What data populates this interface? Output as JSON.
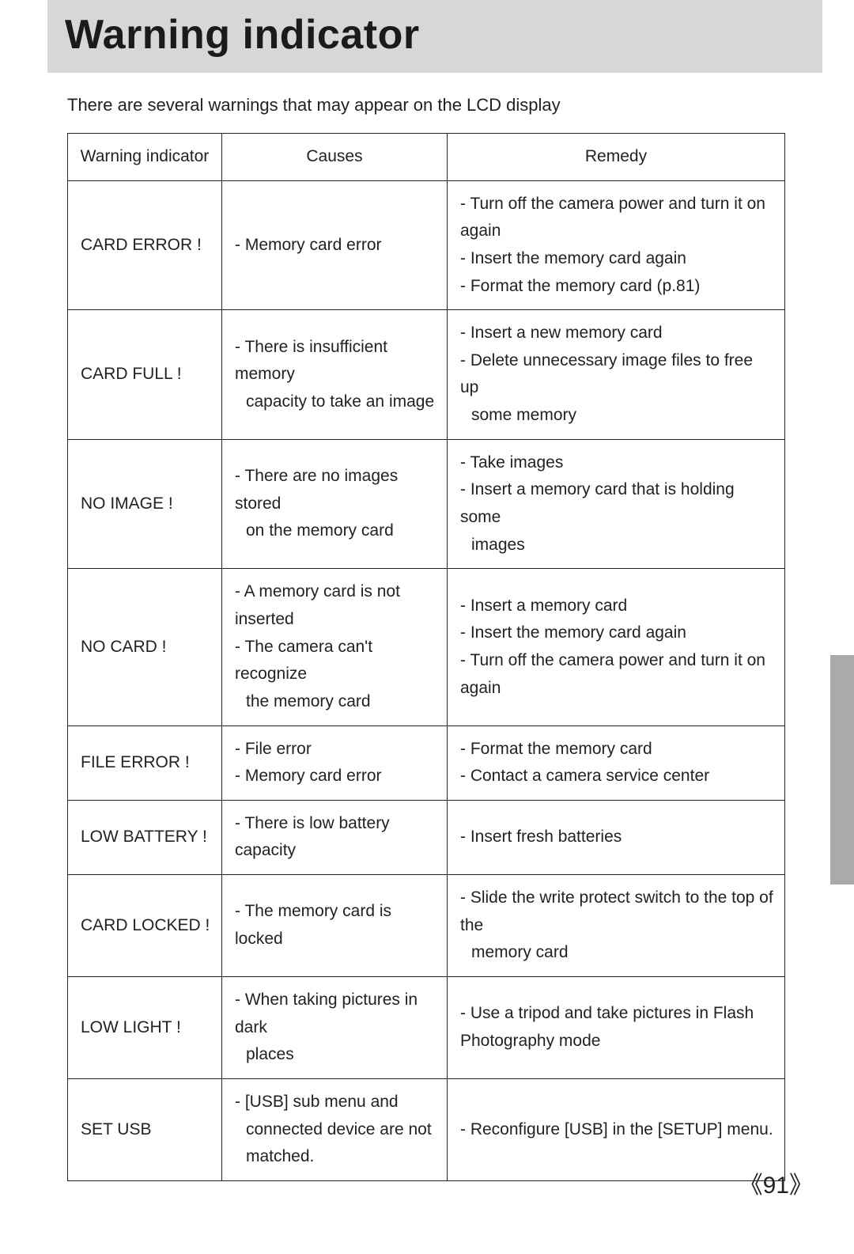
{
  "title": "Warning indicator",
  "intro": "There are several warnings that may appear on the LCD display",
  "columns": [
    "Warning indicator",
    "Causes",
    "Remedy"
  ],
  "page_number": "91",
  "rows": [
    {
      "indicator": "CARD ERROR !",
      "causes": [
        {
          "t": "- Memory card error"
        }
      ],
      "remedy": [
        {
          "t": "- Turn off the camera power and turn it on again"
        },
        {
          "t": "- Insert the memory card again"
        },
        {
          "t": "- Format the memory card (p.81)"
        }
      ]
    },
    {
      "indicator": "CARD FULL !",
      "causes": [
        {
          "t": "- There is insufficient memory"
        },
        {
          "t": "capacity to take an image",
          "sub": true
        }
      ],
      "remedy": [
        {
          "t": "- Insert a new memory card"
        },
        {
          "t": "- Delete unnecessary image files to free up"
        },
        {
          "t": "some memory",
          "sub": true
        }
      ]
    },
    {
      "indicator": "NO IMAGE !",
      "causes": [
        {
          "t": "- There are no images stored"
        },
        {
          "t": "on the memory card",
          "sub": true
        }
      ],
      "remedy": [
        {
          "t": "- Take images"
        },
        {
          "t": "- Insert a memory card that is holding some"
        },
        {
          "t": "images",
          "sub": true
        }
      ]
    },
    {
      "indicator": "NO CARD !",
      "causes": [
        {
          "t": "- A memory card is not inserted"
        },
        {
          "t": "- The camera can't recognize"
        },
        {
          "t": "the memory card",
          "sub": true
        }
      ],
      "remedy": [
        {
          "t": "- Insert a memory card"
        },
        {
          "t": "- Insert the memory card again"
        },
        {
          "t": "- Turn off the camera power and turn it on again"
        }
      ]
    },
    {
      "indicator": "FILE ERROR !",
      "causes": [
        {
          "t": "- File error"
        },
        {
          "t": "- Memory card error"
        }
      ],
      "remedy": [
        {
          "t": "- Format the memory card"
        },
        {
          "t": "- Contact a camera service center"
        }
      ]
    },
    {
      "indicator": "LOW BATTERY !",
      "causes": [
        {
          "t": "- There is low battery capacity"
        }
      ],
      "remedy": [
        {
          "t": "- Insert fresh batteries"
        }
      ]
    },
    {
      "indicator": "CARD LOCKED !",
      "causes": [
        {
          "t": "- The memory card is locked"
        }
      ],
      "remedy": [
        {
          "t": "- Slide the write protect switch to the top of the"
        },
        {
          "t": "memory card",
          "sub": true
        }
      ]
    },
    {
      "indicator": "LOW LIGHT !",
      "causes": [
        {
          "t": "- When taking pictures in dark"
        },
        {
          "t": "places",
          "sub": true
        }
      ],
      "remedy": [
        {
          "t": "- Use a tripod and take pictures in Flash"
        },
        {
          "t": "Photography mode"
        }
      ]
    },
    {
      "indicator": "SET USB",
      "causes": [
        {
          "t": "- [USB] sub menu and"
        },
        {
          "t": "connected device are not",
          "sub": true
        },
        {
          "t": "matched.",
          "sub": true
        }
      ],
      "remedy": [
        {
          "t": "- Reconfigure [USB] in the [SETUP] menu."
        }
      ]
    }
  ]
}
